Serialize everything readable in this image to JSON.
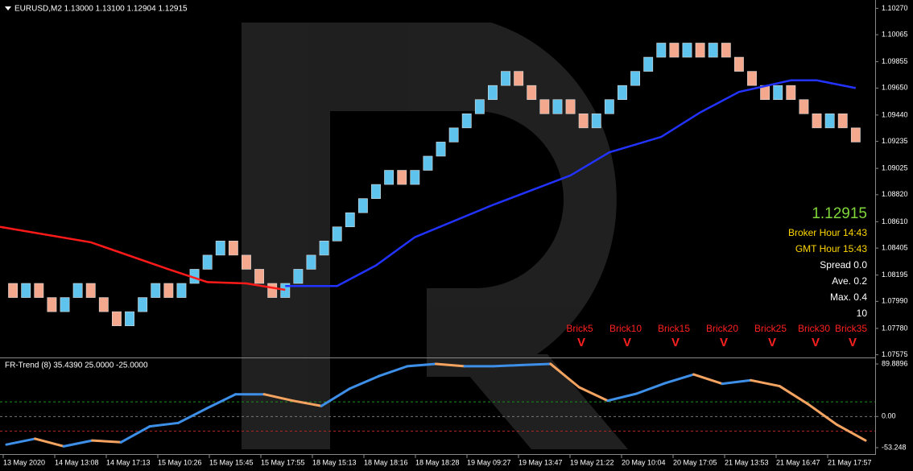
{
  "chart_data": [
    {
      "type": "renko",
      "title": "EURUSD,M2  1.13000 1.13100 1.12904 1.12915",
      "open": [
        1.0813,
        1.0802,
        1.0813,
        1.0802,
        1.0791,
        1.0802,
        1.0813,
        1.0802,
        1.0791,
        1.078,
        1.0791,
        1.0802,
        1.0813,
        1.0802,
        1.0813,
        1.0824,
        1.0835,
        1.0846,
        1.0835,
        1.0824,
        1.0813,
        1.0802,
        1.0813,
        1.0824,
        1.0835,
        1.0846,
        1.0857,
        1.0868,
        1.0879,
        1.089,
        1.0901,
        1.089,
        1.0901,
        1.0912,
        1.0923,
        1.0934,
        1.0945,
        1.0956,
        1.0967,
        1.0978,
        1.0967,
        1.0956,
        1.0945,
        1.0956,
        1.0945,
        1.0934,
        1.0945,
        1.0956,
        1.0967,
        1.0978,
        1.0989,
        1.1,
        1.0989,
        1.1,
        1.0989,
        1.1,
        1.0989,
        1.0978,
        1.0967,
        1.0956,
        1.0967,
        1.0956,
        1.0945,
        1.0934,
        1.0945,
        1.0934
      ],
      "close": [
        1.0802,
        1.0813,
        1.0802,
        1.0791,
        1.0802,
        1.0813,
        1.0802,
        1.0791,
        1.078,
        1.0791,
        1.0802,
        1.0813,
        1.0802,
        1.0813,
        1.0824,
        1.0835,
        1.0846,
        1.0835,
        1.0824,
        1.0813,
        1.0802,
        1.0813,
        1.0824,
        1.0835,
        1.0846,
        1.0857,
        1.0868,
        1.0879,
        1.089,
        1.0901,
        1.089,
        1.0901,
        1.0912,
        1.0923,
        1.0934,
        1.0945,
        1.0956,
        1.0967,
        1.0978,
        1.0967,
        1.0956,
        1.0945,
        1.0956,
        1.0945,
        1.0934,
        1.0945,
        1.0956,
        1.0967,
        1.0978,
        1.0989,
        1.1,
        1.0989,
        1.1,
        1.0989,
        1.1,
        1.0989,
        1.0978,
        1.0967,
        1.0956,
        1.0967,
        1.0956,
        1.0945,
        1.0934,
        1.0945,
        1.0934,
        1.0923
      ],
      "bull_color": "#5ec4ee",
      "bear_color": "#f4a98e",
      "xlim": [
        -1,
        66.5
      ],
      "ylim": [
        1.0756,
        1.1031
      ],
      "yticks": [
        {
          "value": 1.1027,
          "label": "1.10270"
        },
        1.10065,
        1.09855,
        {
          "value": 1.0965,
          "label": "1.09650"
        },
        {
          "value": 1.0944,
          "label": "1.09440"
        },
        1.09235,
        1.09025,
        {
          "value": 1.0882,
          "label": "1.08820"
        },
        {
          "value": 1.0861,
          "label": "1.08610"
        },
        1.08405,
        1.08195,
        {
          "value": 1.0799,
          "label": "1.07990"
        },
        {
          "value": 1.0778,
          "label": "1.07780"
        },
        1.07575
      ],
      "overlays": [
        {
          "color": "#ff1a1a",
          "x": [
            -1,
            6,
            12,
            15,
            18,
            21
          ],
          "values": [
            1.0857,
            1.0845,
            1.0824,
            1.0814,
            1.0813,
            1.0808
          ]
        },
        {
          "color": "#2233ff",
          "x": [
            21,
            25,
            28,
            31,
            37,
            43,
            46,
            50,
            53,
            56,
            60,
            62,
            65
          ],
          "values": [
            1.0811,
            1.0811,
            1.0827,
            1.0849,
            1.0874,
            1.0897,
            1.0915,
            1.0927,
            1.0946,
            1.0962,
            1.0971,
            1.0971,
            1.0965
          ]
        }
      ],
      "x_labels": [
        "13 May 2020",
        "14 May 13:08",
        "14 May 17:13",
        "15 May 10:26",
        "15 May 15:45",
        "15 May 17:55",
        "18 May 15:13",
        "18 May 18:16",
        "18 May 18:28",
        "19 May 09:27",
        "19 May 13:47",
        "19 May 21:22",
        "20 May 10:04",
        "20 May 17:05",
        "21 May 13:53",
        "21 May 16:47",
        "21 May 17:57"
      ],
      "info_panel": {
        "price": "1.12915",
        "broker_hour": "Broker Hour  14:43",
        "gmt_hour": "GMT Hour  15:43",
        "spread": "Spread 0.0",
        "average": "Ave. 0.2",
        "max": "Max. 0.4",
        "count": "10"
      },
      "brick_labels": [
        {
          "label": "Brick5",
          "mark": "V"
        },
        {
          "label": "Brick10",
          "mark": "V"
        },
        {
          "label": "Brick15",
          "mark": "V"
        },
        {
          "label": "Brick20",
          "mark": "V"
        },
        {
          "label": "Brick25",
          "mark": "V"
        },
        {
          "label": "Brick30",
          "mark": "V"
        },
        {
          "label": "Brick35",
          "mark": "V"
        }
      ]
    },
    {
      "type": "line",
      "title": "FR-Trend (8) 35.4390 25.0000 -25.0000",
      "values": [
        -48,
        -38,
        -51,
        -41,
        -44,
        -17,
        -11,
        14,
        38,
        38,
        27,
        18,
        48,
        69,
        86,
        90,
        86,
        86,
        88,
        90,
        50,
        27,
        39,
        57,
        72,
        56,
        62,
        52,
        21,
        -14,
        -41
      ],
      "up_color": "#3d8fe8",
      "down_color": "#f4a460",
      "ylim": [
        -62.9,
        98.2
      ],
      "yticks": [
        89.8896,
        {
          "value": 0,
          "label": "0.00"
        },
        -53.248
      ],
      "levels": [
        {
          "value": 25,
          "color": "#1f8f1f"
        },
        {
          "value": -25,
          "color": "#b32222"
        }
      ]
    }
  ]
}
